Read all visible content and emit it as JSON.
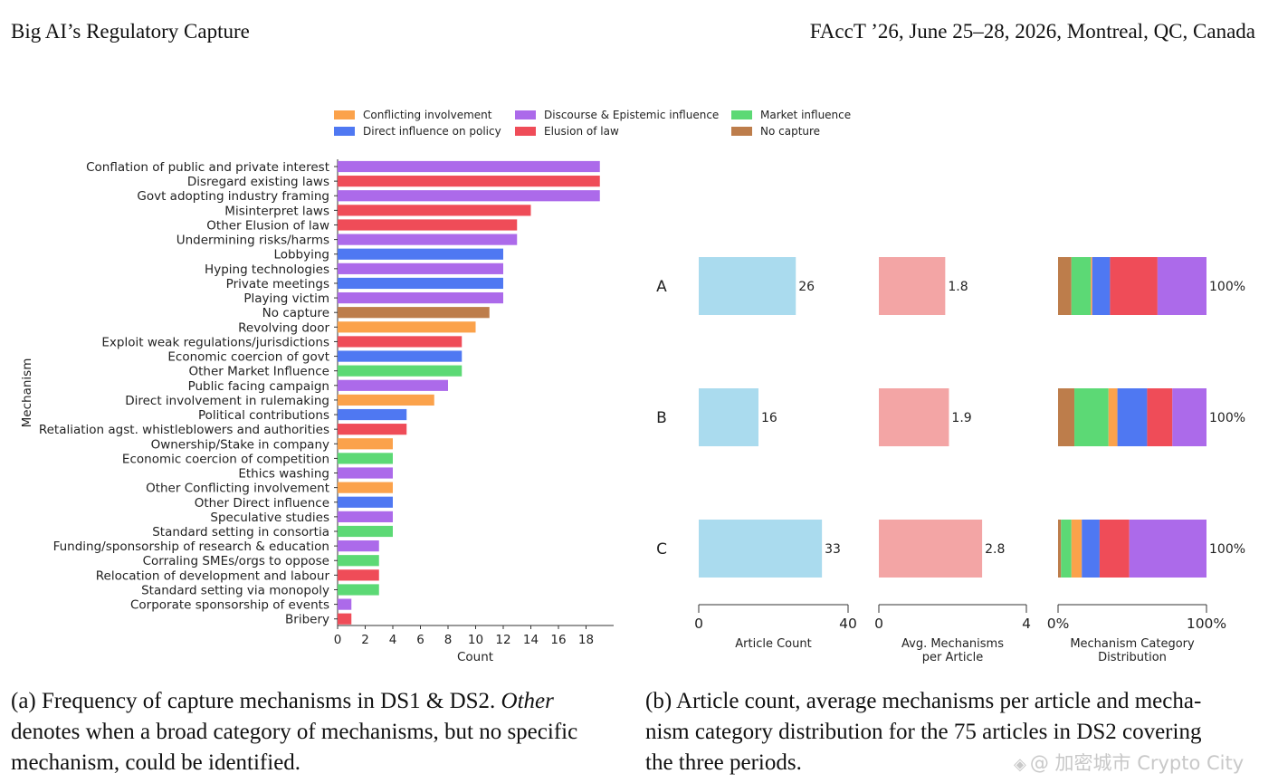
{
  "header": {
    "left": "Big AI’s Regulatory Capture",
    "right": "FAccT ’26, June 25–28, 2026, Montreal, QC, Canada"
  },
  "legend": [
    {
      "label": "Conflicting involvement",
      "color": "#fba24b"
    },
    {
      "label": "Direct influence on policy",
      "color": "#4f78f2"
    },
    {
      "label": "Discourse & Epistemic influence",
      "color": "#ac6aea"
    },
    {
      "label": "Elusion of law",
      "color": "#ef4c58"
    },
    {
      "label": "Market influence",
      "color": "#5cd975"
    },
    {
      "label": "No capture",
      "color": "#bd7d4b"
    }
  ],
  "chart_data": [
    {
      "type": "bar",
      "orientation": "horizontal",
      "xlabel": "Count",
      "ylabel": "Mechanism",
      "xlim": [
        0,
        20
      ],
      "xticks": [
        0,
        2,
        4,
        6,
        8,
        10,
        12,
        14,
        16,
        18
      ],
      "legend_position": "top",
      "grid": false,
      "bars": [
        {
          "label": "Conflation of public and private interest",
          "value": 19,
          "category": "Discourse & Epistemic influence"
        },
        {
          "label": "Disregard existing laws",
          "value": 19,
          "category": "Elusion of law"
        },
        {
          "label": "Govt adopting industry framing",
          "value": 19,
          "category": "Discourse & Epistemic influence"
        },
        {
          "label": "Misinterpret laws",
          "value": 14,
          "category": "Elusion of law"
        },
        {
          "label": "Other Elusion of law",
          "value": 13,
          "category": "Elusion of law"
        },
        {
          "label": "Undermining risks/harms",
          "value": 13,
          "category": "Discourse & Epistemic influence"
        },
        {
          "label": "Lobbying",
          "value": 12,
          "category": "Direct influence on policy"
        },
        {
          "label": "Hyping technologies",
          "value": 12,
          "category": "Discourse & Epistemic influence"
        },
        {
          "label": "Private meetings",
          "value": 12,
          "category": "Direct influence on policy"
        },
        {
          "label": "Playing victim",
          "value": 12,
          "category": "Discourse & Epistemic influence"
        },
        {
          "label": "No capture",
          "value": 11,
          "category": "No capture"
        },
        {
          "label": "Revolving door",
          "value": 10,
          "category": "Conflicting involvement"
        },
        {
          "label": "Exploit weak regulations/jurisdictions",
          "value": 9,
          "category": "Elusion of law"
        },
        {
          "label": "Economic coercion of govt",
          "value": 9,
          "category": "Direct influence on policy"
        },
        {
          "label": "Other Market Influence",
          "value": 9,
          "category": "Market influence"
        },
        {
          "label": "Public facing campaign",
          "value": 8,
          "category": "Discourse & Epistemic influence"
        },
        {
          "label": "Direct involvement in rulemaking",
          "value": 7,
          "category": "Conflicting involvement"
        },
        {
          "label": "Political contributions",
          "value": 5,
          "category": "Direct influence on policy"
        },
        {
          "label": "Retaliation agst. whistleblowers and authorities",
          "value": 5,
          "category": "Elusion of law"
        },
        {
          "label": "Ownership/Stake in company",
          "value": 4,
          "category": "Conflicting involvement"
        },
        {
          "label": "Economic coercion of competition",
          "value": 4,
          "category": "Market influence"
        },
        {
          "label": "Ethics washing",
          "value": 4,
          "category": "Discourse & Epistemic influence"
        },
        {
          "label": "Other Conflicting involvement",
          "value": 4,
          "category": "Conflicting involvement"
        },
        {
          "label": "Other Direct influence",
          "value": 4,
          "category": "Direct influence on policy"
        },
        {
          "label": "Speculative studies",
          "value": 4,
          "category": "Discourse & Epistemic influence"
        },
        {
          "label": "Standard setting in consortia",
          "value": 4,
          "category": "Market influence"
        },
        {
          "label": "Funding/sponsorship of research & education",
          "value": 3,
          "category": "Discourse & Epistemic influence"
        },
        {
          "label": "Corraling SMEs/orgs to oppose",
          "value": 3,
          "category": "Market influence"
        },
        {
          "label": "Relocation of development and labour",
          "value": 3,
          "category": "Elusion of law"
        },
        {
          "label": "Standard setting via monopoly",
          "value": 3,
          "category": "Market influence"
        },
        {
          "label": "Corporate sponsorship of events",
          "value": 1,
          "category": "Discourse & Epistemic influence"
        },
        {
          "label": "Bribery",
          "value": 1,
          "category": "Elusion of law"
        }
      ]
    },
    {
      "type": "bar",
      "orientation": "horizontal",
      "categories": [
        "A",
        "B",
        "C"
      ],
      "panels": [
        {
          "xlabel": [
            "Article Count"
          ],
          "xlim": [
            0,
            40
          ],
          "xticks": [
            0,
            40
          ],
          "color": "#aadbee",
          "values": [
            26,
            16,
            33
          ],
          "value_labels": [
            "26",
            "16",
            "33"
          ]
        },
        {
          "xlabel": [
            "Avg. Mechanisms",
            "per Article"
          ],
          "xlim": [
            0,
            4
          ],
          "xticks": [
            0,
            4
          ],
          "color": "#f3a5a5",
          "values": [
            1.8,
            1.9,
            2.8
          ],
          "value_labels": [
            "1.8",
            "1.9",
            "2.8"
          ]
        },
        {
          "type": "stacked",
          "xlabel": [
            "Mechanism Category",
            "Distribution"
          ],
          "xlim": [
            0,
            100
          ],
          "xticks": [
            "0%",
            "100%"
          ],
          "value_labels": [
            "100%",
            "100%",
            "100%"
          ],
          "stack_order": [
            "No capture",
            "Market influence",
            "Conflicting involvement",
            "Direct influence on policy",
            "Elusion of law",
            "Discourse & Epistemic influence"
          ],
          "distributions": [
            [
              9,
              13,
              1,
              12,
              32,
              33
            ],
            [
              11,
              23,
              6,
              20,
              17,
              23
            ],
            [
              2,
              7,
              7,
              12,
              20,
              52
            ]
          ]
        }
      ]
    }
  ],
  "captions": {
    "a": {
      "line1_pre": "(a) Frequency of capture mechanisms in DS1 & DS2. ",
      "line1_em": "Other",
      "line2": "denotes when a broad category of mechanisms, but no specific",
      "line3": "mechanism, could be identified."
    },
    "b": {
      "line1": "(b) Article count, average mechanisms per article and mecha-",
      "line2": "nism category distribution for the 75 articles in DS2 covering",
      "line3": "the three periods."
    }
  },
  "watermark": "@ 加密城市 Crypto City"
}
